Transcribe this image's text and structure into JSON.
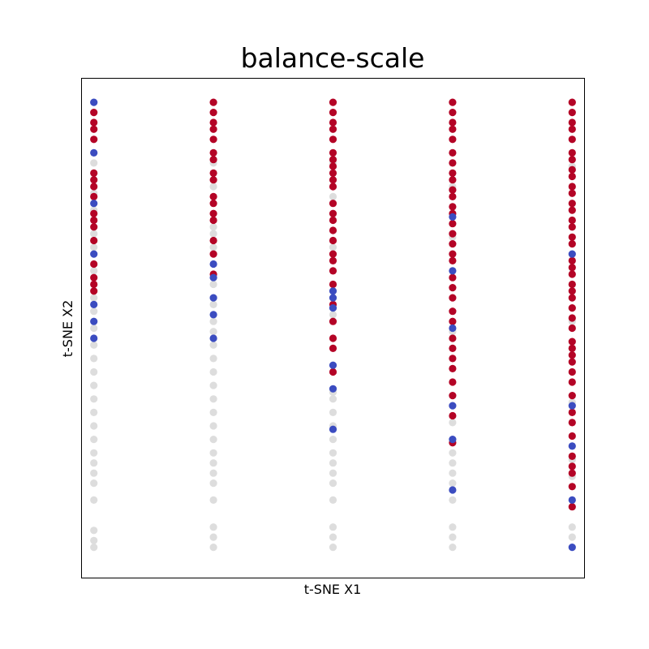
{
  "chart_data": {
    "type": "scatter",
    "title": "balance-scale",
    "xlabel": "t-SNE X1",
    "ylabel": "t-SNE X2",
    "grid": false,
    "legend": "none",
    "xticks": false,
    "yticks": false,
    "xlim": [
      -4.2,
      4.2
    ],
    "ylim": [
      -7.4,
      7.4
    ],
    "colors": {
      "blue": "#3b4cc0",
      "gray": "#dddddd",
      "red": "#b40426"
    },
    "columns": [
      {
        "x": -4,
        "blue": [
          6.7,
          5.2,
          3.7,
          2.2,
          0.7,
          -0.3,
          0.2
        ],
        "red": [
          6.4,
          6.1,
          5.9,
          5.6,
          4.6,
          4.4,
          4.2,
          3.9,
          3.4,
          3.2,
          3.0,
          2.6,
          1.9,
          1.5,
          1.3,
          1.1
        ],
        "gray": [
          4.9,
          4.0,
          3.5,
          2.8,
          2.4,
          1.7,
          0.9,
          0.5,
          0.0,
          -0.5,
          -0.9,
          -1.3,
          -1.7,
          -2.1,
          -2.5,
          -2.9,
          -3.3,
          -3.7,
          -4.0,
          -4.3,
          -4.6,
          -5.1,
          -6.0,
          -6.3,
          -6.5
        ]
      },
      {
        "x": -2,
        "blue": [
          1.9,
          1.5,
          0.9,
          0.4,
          -0.3
        ],
        "red": [
          6.7,
          6.4,
          6.1,
          5.9,
          5.6,
          5.2,
          5.0,
          4.6,
          4.4,
          3.9,
          3.7,
          3.4,
          3.2,
          2.6,
          2.2,
          1.6
        ],
        "gray": [
          4.9,
          4.2,
          3.0,
          2.8,
          2.4,
          1.3,
          0.7,
          0.2,
          -0.1,
          -0.5,
          -0.9,
          -1.3,
          -1.7,
          -2.1,
          -2.5,
          -2.9,
          -3.3,
          -3.7,
          -4.0,
          -4.3,
          -4.6,
          -5.1,
          -5.9,
          -6.2,
          -6.5
        ]
      },
      {
        "x": 0,
        "blue": [
          1.1,
          0.9,
          0.6,
          -1.1,
          -1.8,
          -3.0
        ],
        "red": [
          6.7,
          6.4,
          6.1,
          5.9,
          5.6,
          5.2,
          5.0,
          4.8,
          4.6,
          4.4,
          4.2,
          3.7,
          3.4,
          3.2,
          2.9,
          2.6,
          2.2,
          2.0,
          1.7,
          1.3,
          0.7,
          0.2,
          -0.3,
          -0.6,
          -1.3
        ],
        "gray": [
          4.9,
          3.9,
          2.4,
          0.4,
          -1.9,
          -2.1,
          -2.5,
          -2.9,
          -3.3,
          -3.7,
          -4.0,
          -4.3,
          -4.6,
          -5.1,
          -5.9,
          -6.2,
          -6.5
        ]
      },
      {
        "x": 2,
        "blue": [
          1.7,
          3.3,
          0.0,
          -2.3,
          -3.3,
          -4.8
        ],
        "red": [
          6.7,
          6.4,
          6.1,
          5.9,
          5.6,
          5.2,
          4.9,
          4.6,
          4.4,
          4.1,
          3.9,
          3.6,
          3.4,
          3.1,
          2.8,
          2.5,
          2.2,
          2.0,
          1.5,
          1.2,
          0.9,
          0.5,
          0.2,
          -0.3,
          -0.6,
          -0.9,
          -1.2,
          -1.6,
          -2.0,
          -2.6,
          -3.4
        ],
        "gray": [
          4.2,
          2.7,
          -0.1,
          -2.8,
          -3.7,
          -4.0,
          -4.3,
          -4.6,
          -5.1,
          -5.9,
          -6.2,
          -6.5
        ]
      },
      {
        "x": 4,
        "blue": [
          2.2,
          -2.3,
          -3.5,
          -5.1,
          -6.5
        ],
        "red": [
          6.7,
          6.4,
          6.1,
          5.9,
          5.6,
          5.2,
          5.0,
          4.7,
          4.5,
          4.2,
          4.0,
          3.7,
          3.5,
          3.2,
          3.0,
          2.7,
          2.5,
          2.0,
          1.8,
          1.6,
          1.3,
          1.1,
          0.9,
          0.6,
          0.3,
          0.0,
          -0.4,
          -0.6,
          -0.8,
          -1.0,
          -1.3,
          -1.6,
          -2.0,
          -2.5,
          -2.8,
          -3.2,
          -3.8,
          -4.1,
          -4.3,
          -4.7,
          -5.3
        ],
        "gray": [
          4.8,
          0.2,
          -0.6,
          -2.2,
          -3.9,
          -4.4,
          -5.9,
          -6.2
        ]
      }
    ]
  }
}
